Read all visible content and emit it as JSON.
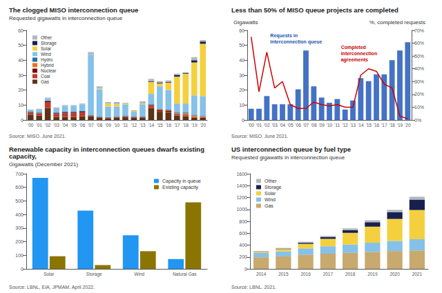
{
  "chart_data": [
    {
      "type": "bar",
      "stacked": true,
      "title": "The clogged MISO interconnection queue",
      "subtitle": "Requested gigawatts in interconnection queue",
      "source": "Source: MISO. June 2021.",
      "categories": [
        "'00",
        "'01",
        "'02",
        "'03",
        "'04",
        "'05",
        "'06",
        "'07",
        "'08",
        "'09",
        "'10",
        "'11",
        "'12",
        "'13",
        "'14",
        "'15",
        "'16",
        "'17",
        "'18",
        "'19",
        "'20"
      ],
      "series": [
        {
          "name": "Gas",
          "color": "#5c3317",
          "values": [
            3.5,
            3.0,
            8.0,
            2.0,
            2.0,
            2.0,
            2.5,
            2.5,
            1.5,
            1.0,
            1.5,
            2.0,
            1.5,
            1.5,
            8.0,
            5.5,
            5.0,
            3.0,
            2.5,
            1.5,
            1.5
          ]
        },
        {
          "name": "Coal",
          "color": "#c0392b",
          "values": [
            1.5,
            1.5,
            4.0,
            2.0,
            2.5,
            2.5,
            2.5,
            0.5,
            0.5,
            0.5,
            0.5,
            0.5,
            0.5,
            0.5,
            1.5,
            0.5,
            0.5,
            0.5,
            0.5,
            0.5,
            0.5
          ]
        },
        {
          "name": "Nuclear",
          "color": "#800000",
          "values": [
            0.0,
            0.0,
            0.5,
            0.5,
            0.5,
            0.5,
            0.5,
            0.0,
            0.0,
            0.0,
            0.0,
            0.0,
            0.0,
            0.0,
            0.5,
            0.5,
            0.5,
            0.5,
            0.5,
            0.0,
            0.0
          ]
        },
        {
          "name": "Hybrid",
          "color": "#e07820",
          "values": [
            0.0,
            0.0,
            0.0,
            0.0,
            0.0,
            0.0,
            0.0,
            0.0,
            0.0,
            0.0,
            0.0,
            0.0,
            0.0,
            0.0,
            0.0,
            0.5,
            0.5,
            0.5,
            1.0,
            1.0,
            0.5
          ]
        },
        {
          "name": "Hydro",
          "color": "#2471a3",
          "values": [
            0.5,
            0.5,
            0.5,
            0.5,
            0.5,
            0.5,
            0.5,
            0.5,
            0.5,
            0.5,
            0.5,
            0.5,
            0.5,
            0.5,
            0.5,
            0.5,
            0.5,
            0.5,
            0.5,
            0.5,
            0.5
          ]
        },
        {
          "name": "Wind",
          "color": "#85c1e9",
          "values": [
            1.0,
            2.0,
            1.5,
            3.0,
            4.0,
            4.0,
            4.5,
            40.0,
            18.0,
            7.0,
            6.5,
            7.5,
            3.0,
            8.0,
            7.0,
            15.0,
            13.0,
            6.0,
            6.0,
            13.0,
            13.0
          ]
        },
        {
          "name": "Solar",
          "color": "#f4d03f",
          "values": [
            0.0,
            0.0,
            0.0,
            0.0,
            0.0,
            0.0,
            0.0,
            0.0,
            0.5,
            2.0,
            1.5,
            0.5,
            0.5,
            0.5,
            8.0,
            2.0,
            5.0,
            18.0,
            20.0,
            22.0,
            35.0
          ]
        },
        {
          "name": "Storage",
          "color": "#17204d",
          "values": [
            0.0,
            0.0,
            0.0,
            0.0,
            0.0,
            0.0,
            0.0,
            0.0,
            0.0,
            0.0,
            0.0,
            0.0,
            0.0,
            0.0,
            0.5,
            0.5,
            0.5,
            1.0,
            0.5,
            1.5,
            1.5
          ]
        },
        {
          "name": "Other",
          "color": "#b0b8c0",
          "values": [
            0.5,
            0.5,
            0.5,
            0.5,
            0.5,
            0.5,
            0.5,
            2.0,
            1.5,
            1.0,
            1.5,
            0.5,
            0.5,
            1.5,
            1.5,
            1.0,
            1.0,
            1.0,
            0.5,
            2.0,
            1.0
          ]
        }
      ],
      "ylim": [
        0,
        60
      ],
      "yticks": [
        0,
        10,
        20,
        30,
        40,
        50,
        60
      ],
      "grid": false,
      "legend": "upper left"
    },
    {
      "type": "bar",
      "title": "Less than 50% of MISO queue projects are completed",
      "ylabel": "Gigawatts",
      "y2label": "%, completed requests",
      "source": "Source: MISO. June 2021.",
      "categories": [
        "'00",
        "'01",
        "'02",
        "'03",
        "'04",
        "'05",
        "'06",
        "'07",
        "'08",
        "'09",
        "'10",
        "'11",
        "'12",
        "'13",
        "'14",
        "'15",
        "'16",
        "'17",
        "'18",
        "'19",
        "'20"
      ],
      "series": [
        {
          "type": "bar",
          "color": "#4472C4",
          "values": [
            7.5,
            7.5,
            16.0,
            10.5,
            10.5,
            10.5,
            20.5,
            46.5,
            22.5,
            15.0,
            11.5,
            14.0,
            7.0,
            13.0,
            28.0,
            26.0,
            30.5,
            30.5,
            40.0,
            46.5,
            52.0
          ]
        },
        {
          "type": "line",
          "axis": "y2",
          "color": "#cc0000",
          "values": [
            65,
            22,
            53,
            25,
            30,
            12,
            9,
            9,
            14,
            12,
            11,
            12,
            10,
            10,
            35,
            40,
            38,
            28,
            25,
            3,
            1
          ]
        }
      ],
      "ylim": [
        0,
        60
      ],
      "yticks": [
        0,
        10,
        20,
        30,
        40,
        50,
        60
      ],
      "y2lim": [
        0,
        70
      ],
      "y2ticks": [
        {
          "value": 0,
          "label": "0%"
        },
        {
          "value": 10,
          "label": "10%"
        },
        {
          "value": 20,
          "label": "20%"
        },
        {
          "value": 30,
          "label": "30%"
        },
        {
          "value": 40,
          "label": "40%"
        },
        {
          "value": 50,
          "label": "50%"
        },
        {
          "value": 60,
          "label": "60%"
        },
        {
          "value": 70,
          "label": "70%"
        }
      ],
      "annotations": [
        {
          "text": "Requests in\ninterconnection queue",
          "color": "#2255aa"
        },
        {
          "text": "Completed\ninterconnection\nagreements",
          "color": "#cc0000"
        }
      ],
      "grid": false
    },
    {
      "type": "bar",
      "title": "Renewable capacity in interconnection queues dwarfs existing capacity,",
      "subtitle": "Gigawatts (December 2021)",
      "source": "Source: LBNL, EIA, JPMAM. April 2022.",
      "categories": [
        "Solar",
        "Storage",
        "Wind",
        "Natural Gas"
      ],
      "series": [
        {
          "name": "Capacity in queue",
          "color": "#2196F3",
          "values": [
            670,
            428,
            247,
            72
          ]
        },
        {
          "name": "Existing capacity",
          "color": "#8B7500",
          "values": [
            93,
            28,
            130,
            490
          ]
        }
      ],
      "ylim": [
        0,
        700
      ],
      "yticks": [
        0,
        100,
        200,
        300,
        400,
        500,
        600,
        700
      ],
      "grid": false,
      "legend": "upper right"
    },
    {
      "type": "bar",
      "stacked": true,
      "title": "US interconnection queue by fuel type",
      "subtitle": "Requested gigawatts in interconnection queue",
      "source": "Source: LBNL. 2021.",
      "categories": [
        "2014",
        "2015",
        "2016",
        "2017",
        "2018",
        "2019",
        "2020",
        "2021"
      ],
      "series": [
        {
          "name": "Gas",
          "color": "#c8a96e",
          "values": [
            195,
            210,
            240,
            255,
            270,
            285,
            300,
            310
          ]
        },
        {
          "name": "Wind",
          "color": "#85c1e9",
          "values": [
            75,
            85,
            105,
            125,
            140,
            155,
            170,
            190
          ]
        },
        {
          "name": "Solar",
          "color": "#f4d03f",
          "values": [
            18,
            38,
            75,
            125,
            195,
            270,
            370,
            490
          ]
        },
        {
          "name": "Storage",
          "color": "#17204d",
          "values": [
            4,
            8,
            18,
            28,
            48,
            75,
            115,
            175
          ]
        },
        {
          "name": "Other",
          "color": "#b0b8c0",
          "values": [
            8,
            12,
            18,
            22,
            27,
            32,
            38,
            48
          ]
        }
      ],
      "ylim": [
        0,
        1600
      ],
      "yticks": [
        0,
        200,
        400,
        600,
        800,
        1000,
        1200,
        1400,
        1600
      ],
      "grid": false,
      "legend": "upper left"
    }
  ]
}
